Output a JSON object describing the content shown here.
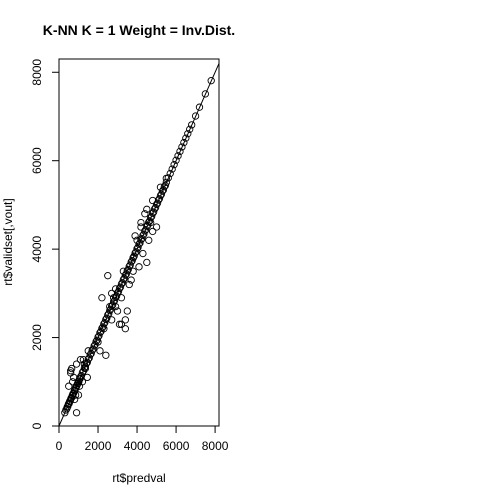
{
  "chart_data": {
    "type": "scatter",
    "title": "K-NN K = 1 Weight = Inv.Dist.",
    "xlabel": "rt$predval",
    "ylabel": "rt$validset[,vout]",
    "xlim": [
      0,
      8200
    ],
    "ylim": [
      0,
      8300
    ],
    "x_ticks": [
      "0",
      "2000",
      "4000",
      "6000",
      "8000"
    ],
    "y_ticks": [
      "0",
      "2000",
      "4000",
      "6000",
      "8000"
    ],
    "x_tick_values": [
      0,
      2000,
      4000,
      6000,
      8000
    ],
    "y_tick_values": [
      0,
      2000,
      4000,
      6000,
      8000
    ],
    "grid": false,
    "reference_line": {
      "slope": 1,
      "intercept": 0
    },
    "marker": "open-circle",
    "color": "#000000",
    "series": [
      {
        "x": [
          300,
          350,
          400,
          420,
          450,
          480,
          500,
          520,
          550,
          580,
          600,
          620,
          650,
          680,
          700,
          720,
          750,
          780,
          800,
          820,
          850,
          880,
          900,
          920,
          950,
          980,
          1000,
          1020,
          1050,
          1080,
          1100,
          1150,
          1200,
          1250,
          1300,
          1350,
          1400,
          1450,
          1500,
          1550,
          1600,
          1650,
          1700,
          1750,
          1800,
          1850,
          1900,
          1950,
          2000,
          2050,
          2100,
          2150,
          2200,
          2250,
          2300,
          2350,
          2400,
          2450,
          2500,
          2550,
          2600,
          2650,
          2700,
          2750,
          2800,
          2850,
          2900,
          2950,
          3000,
          3050,
          3100,
          3150,
          3200,
          3250,
          3300,
          3350,
          3400,
          3450,
          3500,
          3550,
          3600,
          3650,
          3700,
          3750,
          3800,
          3850,
          3900,
          3950,
          4000,
          4050,
          4100,
          4150,
          4200,
          4250,
          4300,
          4350,
          4400,
          4450,
          4500,
          4550,
          4600,
          4650,
          4700,
          4750,
          4800,
          4850,
          4900,
          4950,
          5000,
          5050,
          5100,
          5150,
          5200,
          5250,
          5300,
          5350,
          5400,
          5450,
          5500,
          5600,
          5700,
          5800,
          5900,
          6000,
          6100,
          6200,
          6300,
          6400,
          6500,
          6600,
          6700,
          6800,
          7000,
          7200,
          7500,
          7800,
          500,
          600,
          700,
          800,
          900,
          1000,
          1100,
          1200,
          600,
          900,
          1300,
          1500,
          2200,
          2500,
          2600,
          2700,
          2900,
          3000,
          3200,
          3300,
          3500,
          3700,
          3900,
          4100,
          4300,
          4500,
          4700,
          5000,
          2400,
          2800,
          3100,
          3400,
          3800,
          4000,
          4200,
          4400,
          4600,
          4800,
          650,
          750,
          850,
          1050,
          1250,
          1350,
          1450,
          2000,
          2100,
          2300,
          2700,
          2900,
          3200,
          3400,
          3600,
          3800,
          4200,
          4500,
          4800,
          5200,
          5500
        ],
        "y": [
          300,
          360,
          390,
          430,
          440,
          490,
          510,
          510,
          560,
          570,
          610,
          630,
          640,
          690,
          700,
          730,
          740,
          790,
          810,
          810,
          860,
          870,
          910,
          920,
          960,
          970,
          1010,
          1010,
          1060,
          1070,
          1110,
          1140,
          1210,
          1240,
          1310,
          1340,
          1410,
          1440,
          1510,
          1540,
          1610,
          1640,
          1710,
          1740,
          1810,
          1840,
          1910,
          1940,
          2010,
          2040,
          2110,
          2140,
          2210,
          2240,
          2310,
          2340,
          2410,
          2440,
          2510,
          2540,
          2610,
          2640,
          2710,
          2740,
          2810,
          2840,
          2910,
          2940,
          3010,
          3040,
          3110,
          3140,
          3210,
          3240,
          3310,
          3340,
          3410,
          3440,
          3510,
          3540,
          3610,
          3640,
          3710,
          3740,
          3810,
          3840,
          3910,
          3940,
          4010,
          4040,
          4110,
          4140,
          4210,
          4240,
          4310,
          4340,
          4410,
          4440,
          4510,
          4540,
          4610,
          4640,
          4710,
          4740,
          4810,
          4840,
          4910,
          4940,
          5010,
          5040,
          5110,
          5140,
          5210,
          5240,
          5310,
          5340,
          5410,
          5440,
          5510,
          5610,
          5710,
          5810,
          5910,
          6010,
          6110,
          6210,
          6310,
          6410,
          6510,
          6610,
          6710,
          6810,
          7010,
          7210,
          7510,
          7810,
          900,
          1200,
          1000,
          600,
          1400,
          700,
          1500,
          1000,
          1250,
          300,
          1400,
          1700,
          2900,
          3400,
          2700,
          2400,
          3100,
          2600,
          2300,
          3500,
          2600,
          3300,
          4300,
          3600,
          3900,
          3700,
          4600,
          4500,
          1600,
          2900,
          2300,
          2400,
          3500,
          4200,
          4600,
          4800,
          4200,
          4400,
          1300,
          1100,
          700,
          900,
          1500,
          1300,
          1100,
          1900,
          1700,
          2200,
          3000,
          2700,
          2900,
          2200,
          3200,
          3800,
          4500,
          4900,
          5100,
          5400,
          5600
        ]
      }
    ]
  }
}
